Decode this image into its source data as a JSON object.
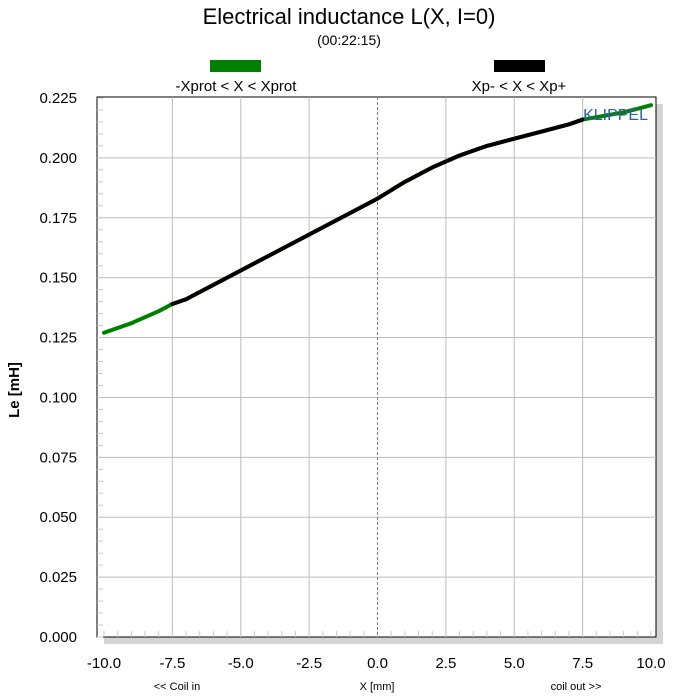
{
  "chart_data": {
    "type": "line",
    "title": "Electrical inductance L(X, I=0)",
    "subtitle": "(00:22:15)",
    "xlabel": "X [mm]",
    "ylabel": "Le [mH]",
    "x_hint_left": "<< Coil in",
    "x_hint_right": "coil out >>",
    "watermark": "KLIPPEL",
    "xlim": [
      -10,
      10
    ],
    "ylim": [
      0,
      0.225
    ],
    "x_ticks": [
      "-10.0",
      "-7.5",
      "-5.0",
      "-2.5",
      "0.0",
      "2.5",
      "5.0",
      "7.5",
      "10.0"
    ],
    "y_ticks": [
      "0.225",
      "0.200",
      "0.175",
      "0.150",
      "0.125",
      "0.100",
      "0.075",
      "0.050",
      "0.025",
      "0.000"
    ],
    "grid": true,
    "legend_position": "top",
    "series": [
      {
        "name": "-Xprot < X < Xprot",
        "color": "#008000",
        "x": [
          -10,
          -9,
          -8,
          -7.5,
          -7,
          -6,
          -5,
          -4,
          -3,
          -2,
          -1,
          0,
          1,
          2,
          3,
          4,
          5,
          6,
          7,
          7.5,
          8,
          9,
          10
        ],
        "y": [
          0.127,
          0.131,
          0.136,
          0.139,
          0.141,
          0.147,
          0.153,
          0.159,
          0.165,
          0.171,
          0.177,
          0.183,
          0.19,
          0.196,
          0.201,
          0.205,
          0.208,
          0.211,
          0.214,
          0.216,
          0.217,
          0.219,
          0.222
        ]
      },
      {
        "name": "Xp- < X < Xp+",
        "color": "#000000",
        "x": [
          -7.5,
          -7,
          -6,
          -5,
          -4,
          -3,
          -2,
          -1,
          0,
          1,
          2,
          3,
          4,
          5,
          6,
          7,
          7.5
        ],
        "y": [
          0.139,
          0.141,
          0.147,
          0.153,
          0.159,
          0.165,
          0.171,
          0.177,
          0.183,
          0.19,
          0.196,
          0.201,
          0.205,
          0.208,
          0.211,
          0.214,
          0.216
        ]
      }
    ]
  }
}
